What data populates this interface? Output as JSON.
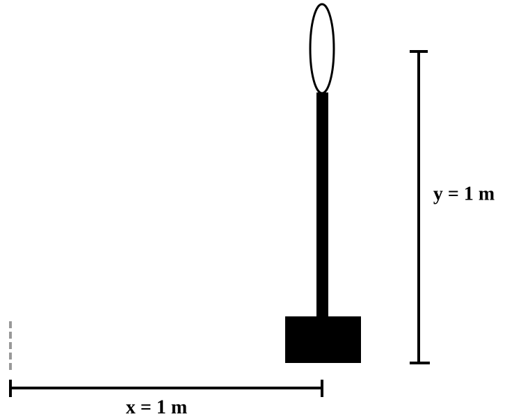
{
  "labels": {
    "x": "x = 1 m",
    "y": "y = 1 m"
  }
}
